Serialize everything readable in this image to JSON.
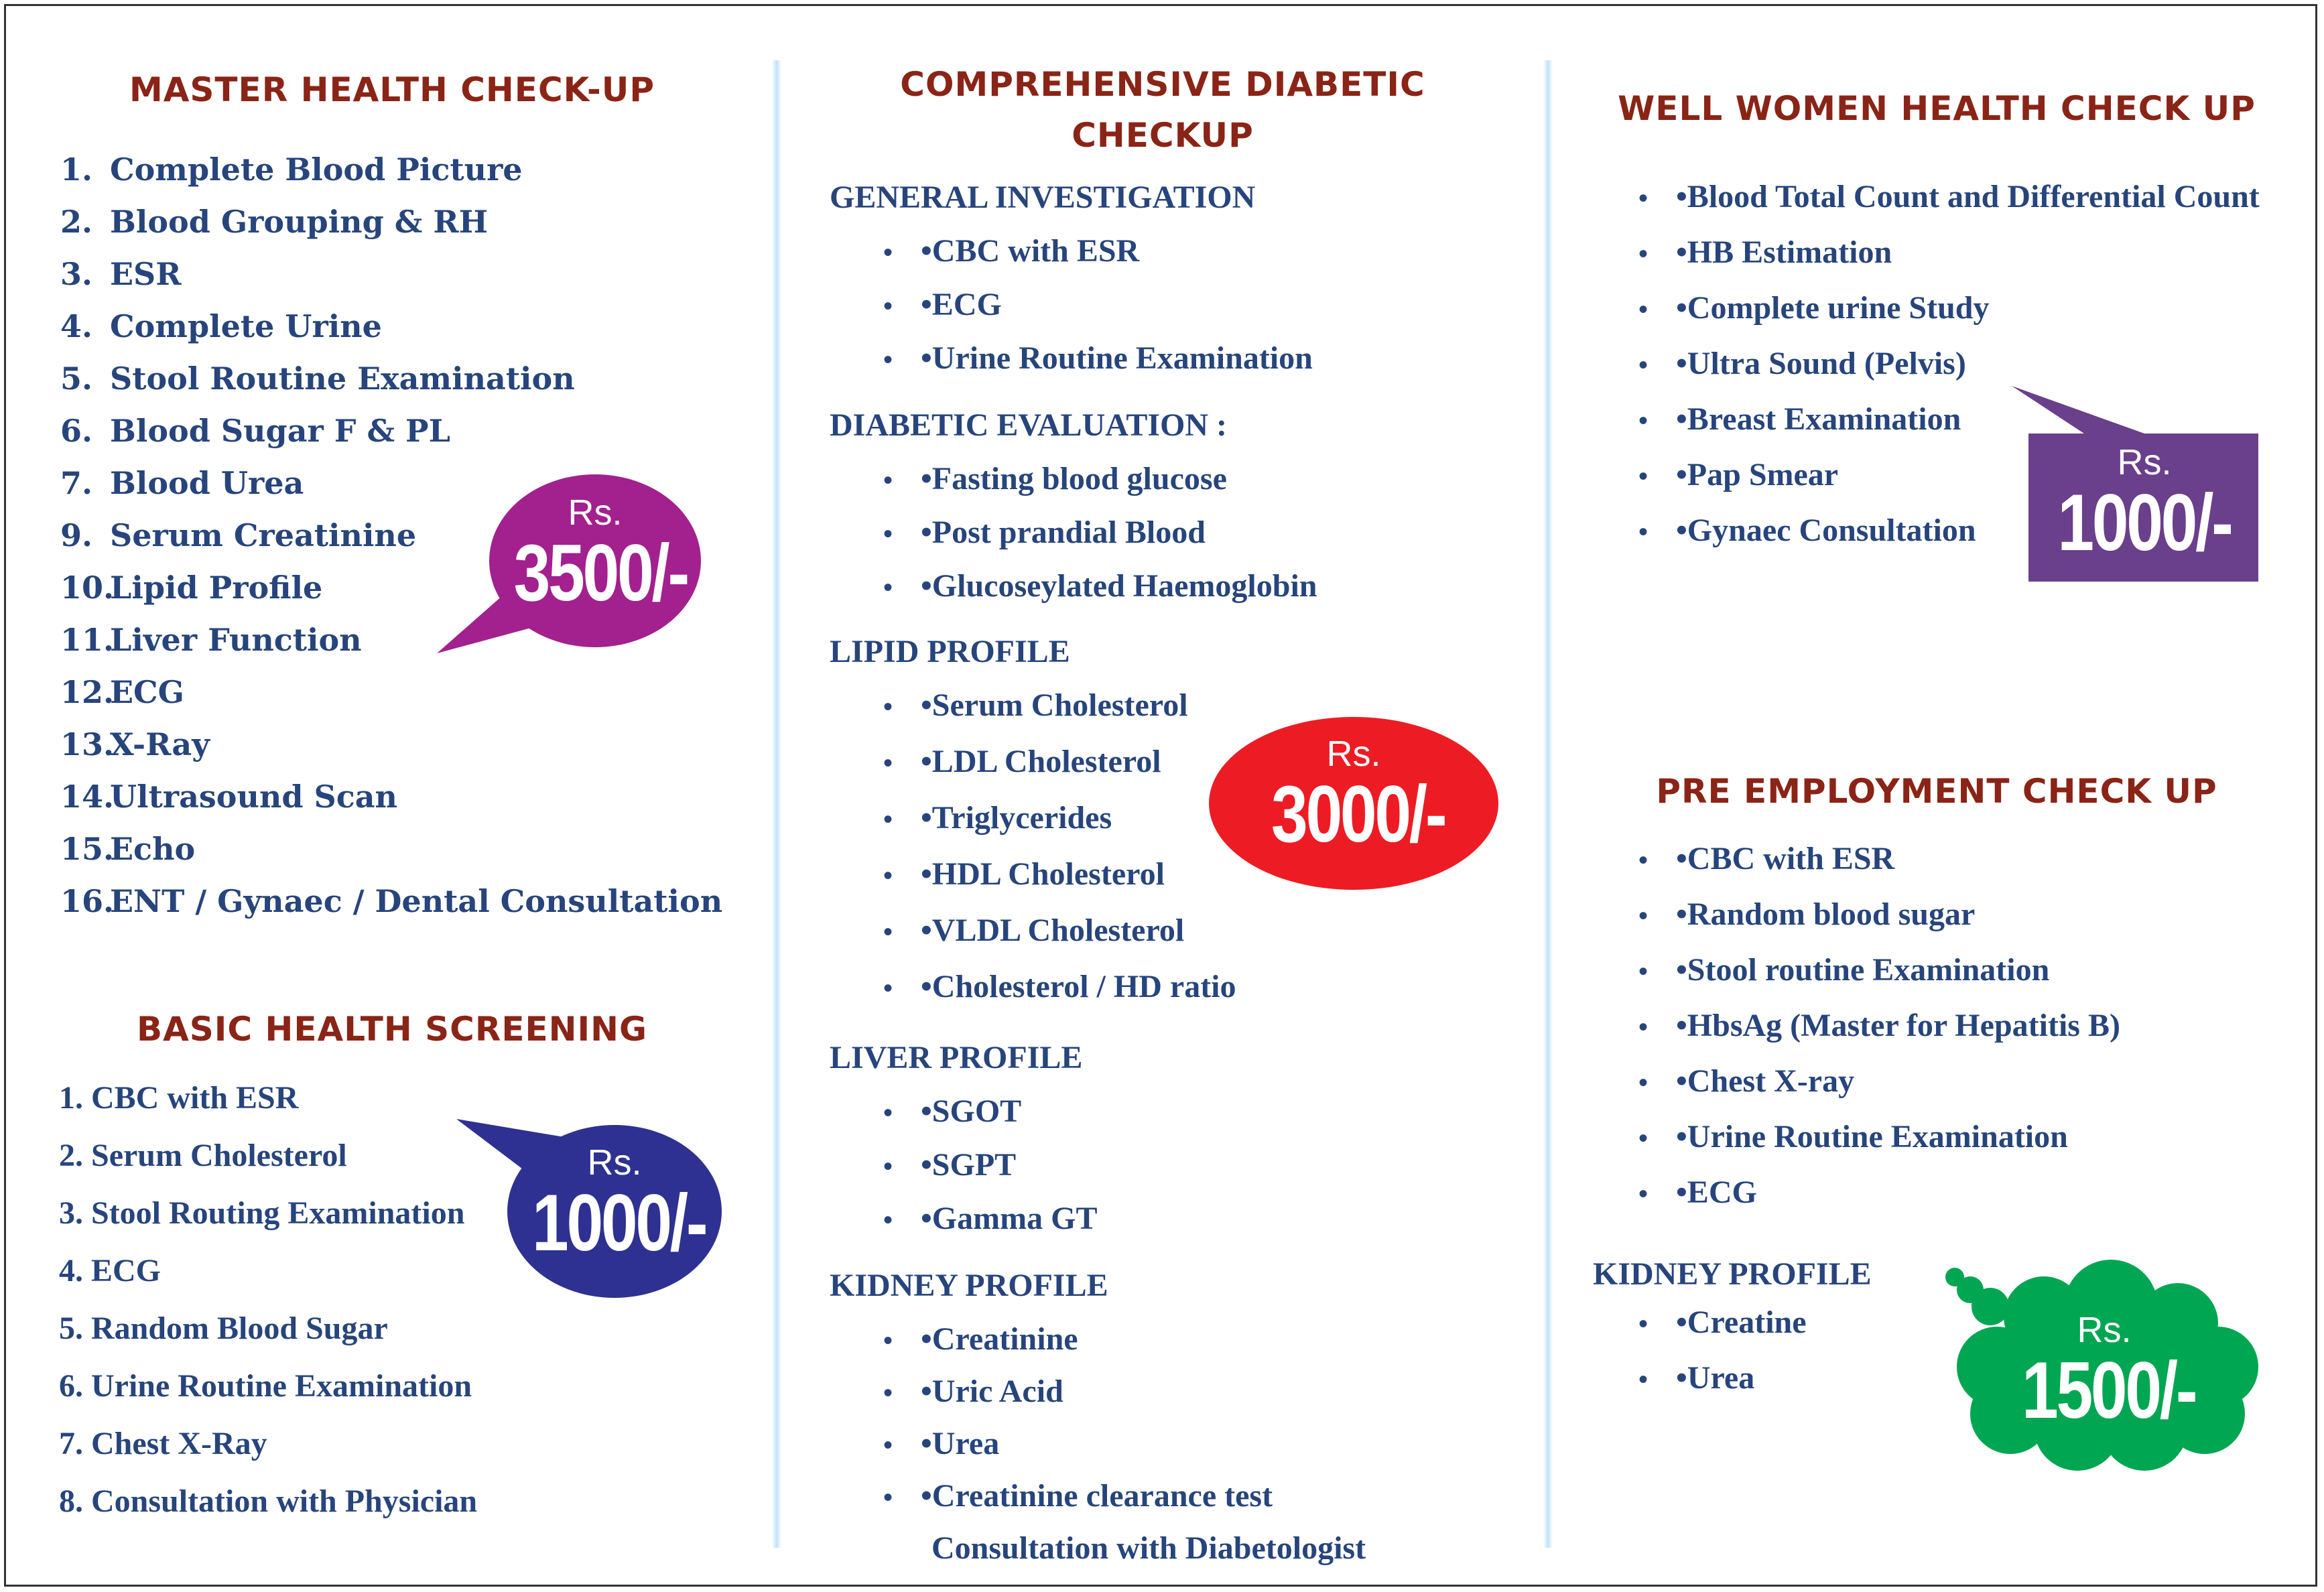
{
  "colors": {
    "heading": "#8a2416",
    "text": "#27457c",
    "master_price": "#a3208f",
    "diabetic_price": "#ed1c24",
    "basic_price": "#2e3192",
    "women_price": "#6a3f8b",
    "employment_price": "#00a651"
  },
  "master": {
    "title": "MASTER HEALTH CHECK-UP",
    "items": [
      {
        "n": "1.",
        "t": "Complete Blood Picture"
      },
      {
        "n": "2.",
        "t": "Blood Grouping & RH"
      },
      {
        "n": "3.",
        "t": "ESR"
      },
      {
        "n": "4.",
        "t": "Complete Urine"
      },
      {
        "n": "5.",
        "t": "Stool Routine Examination"
      },
      {
        "n": "6.",
        "t": "Blood Sugar F & PL"
      },
      {
        "n": "7.",
        "t": "Blood Urea"
      },
      {
        "n": "9.",
        "t": "Serum Creatinine"
      },
      {
        "n": "10.",
        "t": "Lipid Profile"
      },
      {
        "n": "11.",
        "t": "Liver Function"
      },
      {
        "n": "12.",
        "t": "ECG"
      },
      {
        "n": "13.",
        "t": "X-Ray"
      },
      {
        "n": "14.",
        "t": "Ultrasound Scan"
      },
      {
        "n": "15.",
        "t": "Echo"
      },
      {
        "n": "16.",
        "t": "ENT / Gynaec / Dental  Consultation"
      }
    ],
    "price": {
      "rs": "Rs.",
      "amount": "3500/-"
    }
  },
  "basic": {
    "title": "BASIC HEALTH SCREENING",
    "items": [
      "1. CBC with ESR",
      "2. Serum Cholesterol",
      "3. Stool Routing Examination",
      "4. ECG",
      "5. Random Blood Sugar",
      "6. Urine Routine Examination",
      "7. Chest X-Ray",
      "8. Consultation with Physician"
    ],
    "price": {
      "rs": "Rs.",
      "amount": "1000/-"
    }
  },
  "diabetic": {
    "title_line1": "COMPREHENSIVE DIABETIC",
    "title_line2": "CHECKUP",
    "sections": [
      {
        "heading": "GENERAL INVESTIGATION",
        "items": [
          "•CBC with ESR",
          "•ECG",
          "•Urine Routine Examination"
        ]
      },
      {
        "heading": "DIABETIC EVALUATION :",
        "items": [
          "•Fasting blood glucose",
          "•Post prandial Blood",
          "•Glucoseylated Haemoglobin"
        ]
      },
      {
        "heading": "LIPID PROFILE",
        "items": [
          "•Serum Cholesterol",
          "•LDL Cholesterol",
          "•Triglycerides",
          "•HDL Cholesterol",
          "•VLDL Cholesterol",
          "•Cholesterol / HD ratio"
        ]
      },
      {
        "heading": "LIVER PROFILE",
        "items": [
          "•SGOT",
          "•SGPT",
          "•Gamma GT"
        ]
      },
      {
        "heading": "KIDNEY PROFILE",
        "items": [
          "•Creatinine",
          "•Uric Acid",
          "•Urea",
          "•Creatinine clearance test"
        ]
      }
    ],
    "footer": "Consultation with Diabetologist",
    "price": {
      "rs": "Rs.",
      "amount": "3000/-"
    }
  },
  "women": {
    "title": "WELL WOMEN HEALTH CHECK UP",
    "items": [
      "•Blood Total Count and Differential Count",
      "•HB Estimation",
      "•Complete urine Study",
      "•Ultra Sound (Pelvis)",
      "•Breast Examination",
      "•Pap Smear",
      "•Gynaec Consultation"
    ],
    "price": {
      "rs": "Rs.",
      "amount": "1000/-"
    }
  },
  "employment": {
    "title": "PRE EMPLOYMENT CHECK UP",
    "items": [
      "•CBC with ESR",
      "•Random blood sugar",
      "•Stool routine Examination",
      "•HbsAg (Master for Hepatitis B)",
      "•Chest X-ray",
      "•Urine Routine Examination",
      "•ECG"
    ],
    "kidney_heading": "KIDNEY PROFILE",
    "kidney_items": [
      "•Creatine",
      "•Urea"
    ],
    "price": {
      "rs": "Rs.",
      "amount": "1500/-"
    }
  }
}
